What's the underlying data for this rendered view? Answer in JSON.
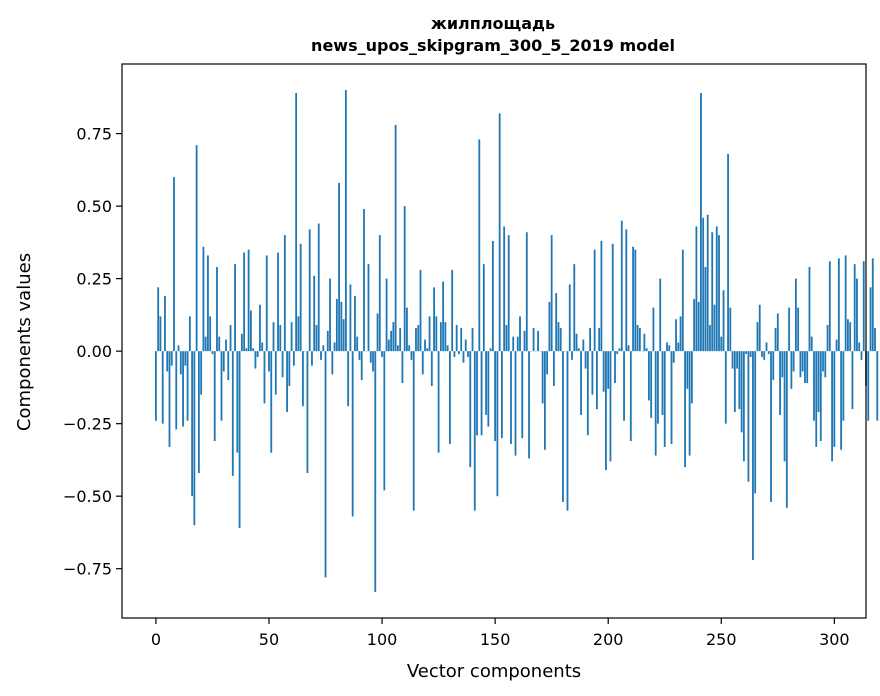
{
  "chart_data": {
    "type": "bar",
    "title": "жилплощадь",
    "subtitle": "news_upos_skipgram_300_5_2019 model",
    "xlabel": "Vector components",
    "ylabel": "Components values",
    "xlim": [
      -15,
      314
    ],
    "ylim": [
      -0.92,
      0.99
    ],
    "xticks": [
      0,
      50,
      100,
      150,
      200,
      250,
      300
    ],
    "yticks": [
      -0.75,
      -0.5,
      -0.25,
      0.0,
      0.25,
      0.5,
      0.75
    ],
    "xtick_labels": [
      "0",
      "50",
      "100",
      "150",
      "200",
      "250",
      "300"
    ],
    "ytick_labels": [
      "−0.75",
      "−0.50",
      "−0.25",
      "0.00",
      "0.25",
      "0.50",
      "0.75"
    ],
    "bar_color": "#1f77b4",
    "grid": false,
    "legend": "none",
    "x_start": 0,
    "values": [
      -0.24,
      0.22,
      0.12,
      -0.25,
      0.19,
      -0.07,
      -0.33,
      -0.05,
      0.6,
      -0.27,
      0.02,
      -0.08,
      -0.26,
      -0.05,
      -0.24,
      0.12,
      -0.5,
      -0.6,
      0.71,
      -0.42,
      -0.15,
      0.36,
      0.05,
      0.33,
      0.12,
      -0.01,
      -0.31,
      0.29,
      0.05,
      -0.24,
      -0.07,
      0.04,
      -0.1,
      0.09,
      -0.43,
      0.3,
      -0.35,
      -0.61,
      0.06,
      0.34,
      0.01,
      0.35,
      0.14,
      0.01,
      -0.06,
      -0.02,
      0.16,
      0.03,
      -0.18,
      0.33,
      -0.07,
      -0.35,
      0.1,
      -0.15,
      0.34,
      0.09,
      -0.09,
      0.4,
      -0.21,
      -0.12,
      0.1,
      -0.05,
      0.89,
      0.12,
      0.37,
      -0.19,
      0.0,
      -0.42,
      0.42,
      -0.05,
      0.26,
      0.09,
      0.44,
      -0.03,
      0.02,
      -0.78,
      0.07,
      0.25,
      -0.08,
      0.03,
      0.18,
      0.58,
      0.17,
      0.11,
      0.9,
      -0.19,
      0.23,
      -0.57,
      0.19,
      0.05,
      -0.03,
      -0.1,
      0.49,
      0.0,
      0.3,
      -0.04,
      -0.07,
      -0.83,
      0.13,
      0.4,
      -0.02,
      -0.48,
      0.25,
      0.04,
      0.07,
      0.1,
      0.78,
      0.02,
      0.08,
      -0.11,
      0.5,
      0.15,
      0.02,
      -0.03,
      -0.55,
      0.08,
      0.09,
      0.28,
      -0.08,
      0.04,
      0.01,
      0.12,
      -0.12,
      0.22,
      0.12,
      -0.35,
      0.1,
      0.24,
      0.1,
      0.02,
      -0.32,
      0.28,
      -0.02,
      0.09,
      -0.01,
      0.08,
      -0.04,
      0.04,
      -0.02,
      -0.4,
      0.08,
      -0.55,
      -0.29,
      0.73,
      -0.29,
      0.3,
      -0.22,
      -0.26,
      0.01,
      0.38,
      -0.31,
      -0.5,
      0.82,
      -0.3,
      0.43,
      0.09,
      0.4,
      -0.32,
      0.05,
      -0.36,
      0.05,
      0.12,
      -0.3,
      0.07,
      0.41,
      -0.37,
      0.0,
      0.08,
      0.0,
      0.07,
      0.0,
      -0.18,
      -0.34,
      -0.08,
      0.17,
      0.4,
      -0.12,
      0.2,
      0.1,
      0.08,
      -0.52,
      0.0,
      -0.55,
      0.23,
      -0.03,
      0.3,
      0.06,
      0.01,
      -0.22,
      0.04,
      -0.06,
      -0.29,
      0.08,
      -0.15,
      0.35,
      -0.2,
      0.08,
      0.38,
      -0.14,
      -0.41,
      -0.13,
      -0.38,
      0.37,
      -0.11,
      -0.01,
      0.01,
      0.45,
      -0.24,
      0.42,
      0.02,
      -0.31,
      0.36,
      0.35,
      0.09,
      0.08,
      0.0,
      0.06,
      0.01,
      -0.17,
      -0.23,
      0.15,
      -0.36,
      -0.25,
      0.25,
      -0.22,
      -0.33,
      0.03,
      0.02,
      -0.32,
      -0.04,
      0.11,
      0.03,
      0.12,
      0.35,
      -0.4,
      -0.13,
      -0.36,
      -0.18,
      0.18,
      0.43,
      0.17,
      0.89,
      0.46,
      0.29,
      0.47,
      0.09,
      0.41,
      0.16,
      0.43,
      0.4,
      0.05,
      0.21,
      -0.25,
      0.68,
      0.15,
      -0.06,
      -0.21,
      -0.06,
      -0.2,
      -0.28,
      -0.38,
      -0.01,
      -0.45,
      -0.02,
      -0.72,
      -0.49,
      0.1,
      0.16,
      -0.02,
      -0.03,
      0.03,
      -0.01,
      -0.52,
      -0.1,
      0.08,
      0.13,
      -0.22,
      -0.09,
      -0.38,
      -0.54,
      0.15,
      -0.13,
      -0.07,
      0.25,
      0.15,
      -0.09,
      -0.07,
      -0.11,
      -0.11,
      0.29,
      0.05,
      -0.24,
      -0.33,
      -0.21,
      -0.31,
      -0.07,
      -0.09,
      0.09,
      0.31,
      -0.38,
      -0.33,
      0.04,
      0.32,
      -0.34,
      -0.24,
      0.33,
      0.11,
      0.1,
      -0.2,
      0.3,
      0.25,
      0.03,
      -0.03,
      0.31,
      -0.12,
      -0.24,
      0.22,
      0.32,
      0.08,
      -0.24
    ]
  }
}
